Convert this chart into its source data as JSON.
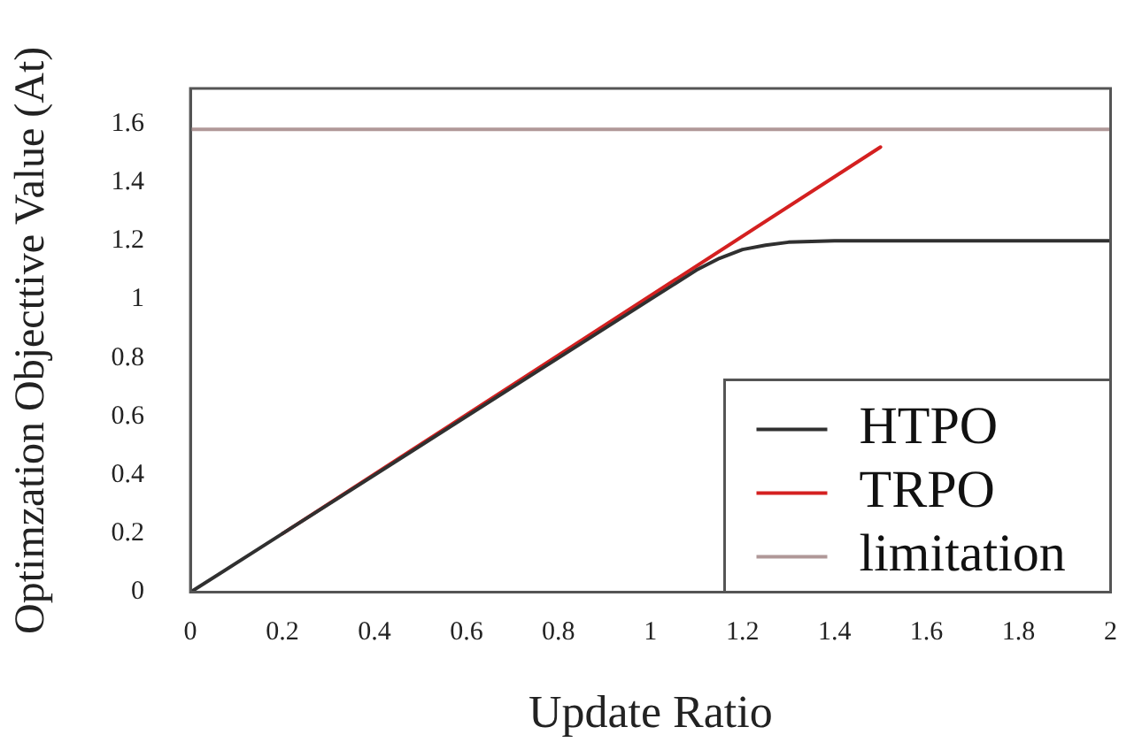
{
  "chart_data": {
    "type": "line",
    "xlabel": "Update Ratio",
    "ylabel": "Optimzation Objecttive Value (At)",
    "xlim": [
      0,
      2
    ],
    "ylim": [
      0,
      1.72
    ],
    "xticks": [
      0,
      0.2,
      0.4,
      0.6,
      0.8,
      1,
      1.2,
      1.4,
      1.6,
      1.8,
      2
    ],
    "yticks": [
      0,
      0.2,
      0.4,
      0.6,
      0.8,
      1,
      1.2,
      1.4,
      1.6
    ],
    "grid": false,
    "legend": "bottom right",
    "marker": "none",
    "line_style": "solid",
    "series": [
      {
        "name": "HTPO",
        "color": "#303030",
        "x": [
          0,
          0.2,
          1,
          1.05,
          1.1,
          1.15,
          1.2,
          1.25,
          1.3,
          1.4,
          1.6,
          2
        ],
        "values": [
          0,
          0.2,
          1,
          1.05,
          1.1,
          1.14,
          1.17,
          1.185,
          1.195,
          1.2,
          1.2,
          1.2
        ]
      },
      {
        "name": "TRPO",
        "color": "#d42020",
        "x": [
          0.2,
          1.5
        ],
        "values": [
          0.2,
          1.52
        ]
      },
      {
        "name": "limitation",
        "color": "#b09898",
        "x": [
          0,
          2
        ],
        "values": [
          1.58,
          1.58
        ]
      }
    ]
  }
}
